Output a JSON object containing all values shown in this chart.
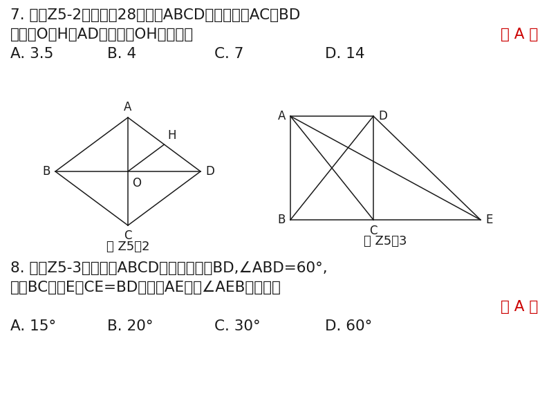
{
  "bg_color": "#ffffff",
  "text_color": "#1a1a1a",
  "red_color": "#cc0000",
  "q7_line1": "7. 如图Z5-2，周长为28的菱形ABCD中，对角线AC，BD",
  "q7_line2": "交于点O，H为AD边中点，OH的长等于",
  "q7_answer": "（ A ）",
  "q7_opts": [
    "A. 3.5",
    "B. 4",
    "C. 7",
    "D. 14"
  ],
  "fig_z5_2_label": "图 Z5－2",
  "fig_z5_3_label": "图 Z5－3",
  "q8_line1": "8. 如图Z5-3，四边形ABCD是矩形，连接BD,∠ABD=60°,",
  "q8_line2": "延长BC到点E使CE=BD，连接AE，则∠AEB的度数为",
  "q8_answer": "（ A ）",
  "q8_opts": [
    "A. 15°",
    "B. 20°",
    "C. 30°",
    "D. 60°"
  ]
}
